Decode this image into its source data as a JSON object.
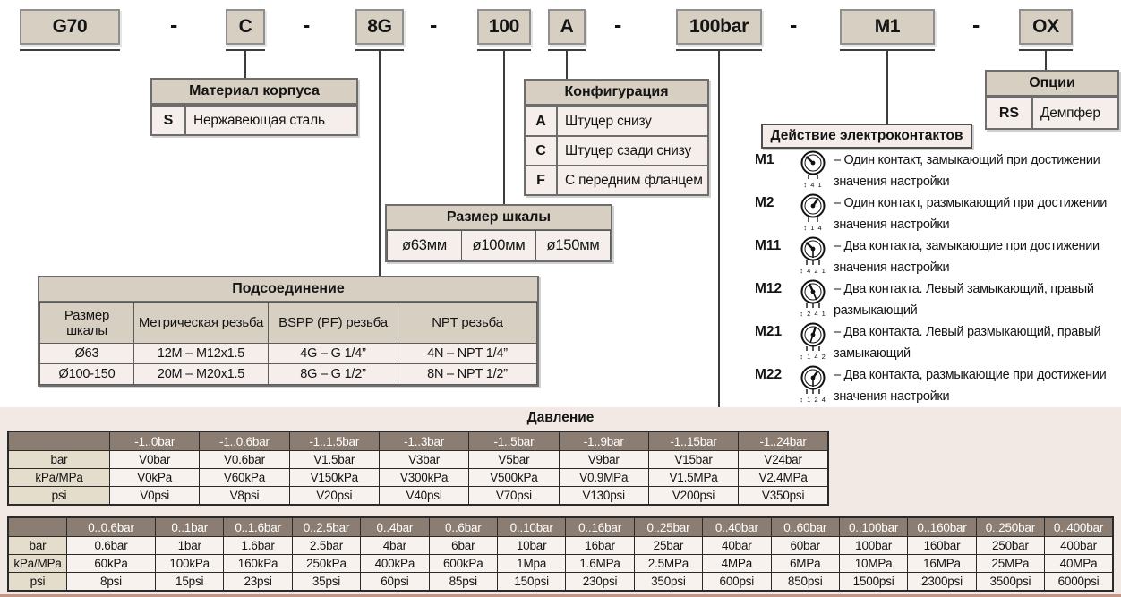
{
  "code": {
    "boxes": [
      "G70",
      "C",
      "8G",
      "100",
      "A",
      "100bar",
      "M1",
      "OX"
    ],
    "separator": "-"
  },
  "material": {
    "title": "Материал корпуса",
    "rows": [
      {
        "code": "S",
        "label": "Нержавеющая сталь"
      }
    ]
  },
  "configuration": {
    "title": "Конфигурация",
    "rows": [
      {
        "code": "A",
        "label": "Штуцер снизу"
      },
      {
        "code": "C",
        "label": "Штуцер сзади снизу"
      },
      {
        "code": "F",
        "label": "С передним фланцем"
      }
    ]
  },
  "options": {
    "title": "Опции",
    "rows": [
      {
        "code": "RS",
        "label": "Демпфер"
      }
    ]
  },
  "contacts": {
    "title": "Действие электроконтактов",
    "items": [
      {
        "code": "M1",
        "pins": "↕ 4 1",
        "desc": "– Один контакт, замыкающий при достижении значения настройки"
      },
      {
        "code": "M2",
        "pins": "↕ 1 4",
        "desc": "– Один контакт, размыкающий при достижении значения настройки"
      },
      {
        "code": "M11",
        "pins": "↕ 4 2 1",
        "desc": "– Два контакта, замыкающие при достижении значения настройки"
      },
      {
        "code": "M12",
        "pins": "↕ 2 4 1",
        "desc": "– Два контакта. Левый замыкающий, правый размыкающий"
      },
      {
        "code": "M21",
        "pins": "↕ 1 4 2",
        "desc": "– Два контакта. Левый размыкающий, правый замыкающий"
      },
      {
        "code": "M22",
        "pins": "↕ 1 2 4",
        "desc": "– Два контакта, размыкающие при достижении значения настройки"
      }
    ]
  },
  "scale_size": {
    "title": "Размер шкалы",
    "table": {
      "rows": [
        [
          "ø63мм",
          "ø100мм",
          "ø150мм"
        ]
      ]
    }
  },
  "connection": {
    "title": "Подсоединение",
    "table": {
      "header": [
        "Размер шкалы",
        "Метрическая резьба",
        "BSPP (PF) резьба",
        "NPT резьба"
      ],
      "rows": [
        [
          "Ø63",
          "12M – M12x1.5",
          "4G – G 1/4”",
          "4N – NPT 1/4”"
        ],
        [
          "Ø100-150",
          "20M – M20x1.5",
          "8G – G 1/2”",
          "8N – NPT 1/2”"
        ]
      ]
    }
  },
  "pressure": {
    "title": "Давление",
    "vacuum_table": {
      "header": [
        "",
        "-1..0bar",
        "-1..0.6bar",
        "-1..1.5bar",
        "-1..3bar",
        "-1..5bar",
        "-1..9bar",
        "-1..15bar",
        "-1..24bar"
      ],
      "rows": [
        [
          "bar",
          "V0bar",
          "V0.6bar",
          "V1.5bar",
          "V3bar",
          "V5bar",
          "V9bar",
          "V15bar",
          "V24bar"
        ],
        [
          "kPa/MPa",
          "V0kPa",
          "V60kPa",
          "V150kPa",
          "V300kPa",
          "V500kPa",
          "V0.9MPa",
          "V1.5MPa",
          "V2.4MPa"
        ],
        [
          "psi",
          "V0psi",
          "V8psi",
          "V20psi",
          "V40psi",
          "V70psi",
          "V130psi",
          "V200psi",
          "V350psi"
        ]
      ]
    },
    "positive_table": {
      "header": [
        "",
        "0..0.6bar",
        "0..1bar",
        "0..1.6bar",
        "0..2.5bar",
        "0..4bar",
        "0..6bar",
        "0..10bar",
        "0..16bar",
        "0..25bar",
        "0..40bar",
        "0..60bar",
        "0..100bar",
        "0..160bar",
        "0..250bar",
        "0..400bar"
      ],
      "rows": [
        [
          "bar",
          "0.6bar",
          "1bar",
          "1.6bar",
          "2.5bar",
          "4bar",
          "6bar",
          "10bar",
          "16bar",
          "25bar",
          "40bar",
          "60bar",
          "100bar",
          "160bar",
          "250bar",
          "400bar"
        ],
        [
          "kPa/MPa",
          "60kPa",
          "100kPa",
          "160kPa",
          "250kPa",
          "400kPa",
          "600kPa",
          "1Mpa",
          "1.6MPa",
          "2.5MPa",
          "4MPa",
          "6MPa",
          "10MPa",
          "16MPa",
          "25MPa",
          "40MPa"
        ],
        [
          "psi",
          "8psi",
          "15psi",
          "23psi",
          "35psi",
          "60psi",
          "85psi",
          "150psi",
          "230psi",
          "350psi",
          "600psi",
          "850psi",
          "1500psi",
          "2300psi",
          "3500psi",
          "6000psi"
        ]
      ]
    }
  },
  "colors": {
    "box_fill": "#d7cfc2",
    "table_header_dark": "#8b7d71",
    "row_light": "#f5eeea",
    "band_pink": "#f2e9e5",
    "row_header_beige": "#e4ddcc"
  }
}
